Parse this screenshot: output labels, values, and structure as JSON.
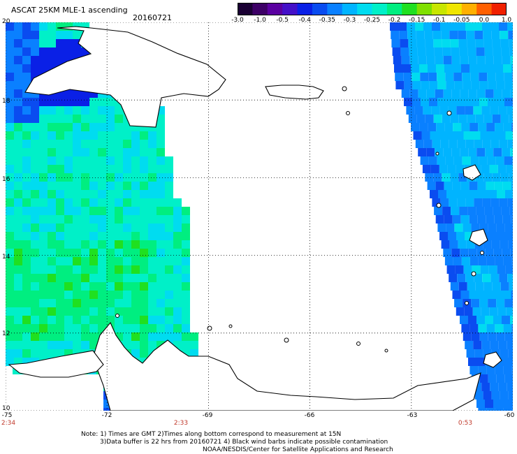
{
  "header": {
    "title": "ASCAT 25KM MLE-1 ascending",
    "date": "20160721"
  },
  "colorbar": {
    "labels": [
      "-3.0",
      "-1.0",
      "-0.5",
      "-0.4",
      "-0.35",
      "-0.3",
      "-0.25",
      "-0.2",
      "-0.15",
      "-0.1",
      "-0.05",
      "0.0",
      "1.0"
    ],
    "colors": [
      "#1a0033",
      "#3d0066",
      "#5a00a0",
      "#4410c8",
      "#0a20e6",
      "#0a4cf0",
      "#0a80ff",
      "#00b4ff",
      "#00dcf0",
      "#00f0c8",
      "#00ee80",
      "#20e020",
      "#80e000",
      "#c8e600",
      "#f0e600",
      "#ffb000",
      "#ff6000",
      "#f02000"
    ]
  },
  "map": {
    "lat_labels": [
      "20",
      "18",
      "16",
      "14",
      "12",
      "10"
    ],
    "lon_labels": [
      "-75",
      "-72",
      "-69",
      "-66",
      "-63",
      "-60"
    ],
    "time_labels": [
      "2:34",
      "2:33",
      "0:53"
    ],
    "land_color": "#ffffff",
    "coast_color": "#000000",
    "grid_color": "#000000"
  },
  "footer": {
    "line1": "Note: 1) Times are GMT 2)Times along bottom correspond to measurement at 15N",
    "line2": "3)Data buffer is 22 hrs from 20160721 4) Black wind barbs indicate possible contamination",
    "line3": "NOAA/NESDIS/Center for Satellite Applications and Research"
  }
}
